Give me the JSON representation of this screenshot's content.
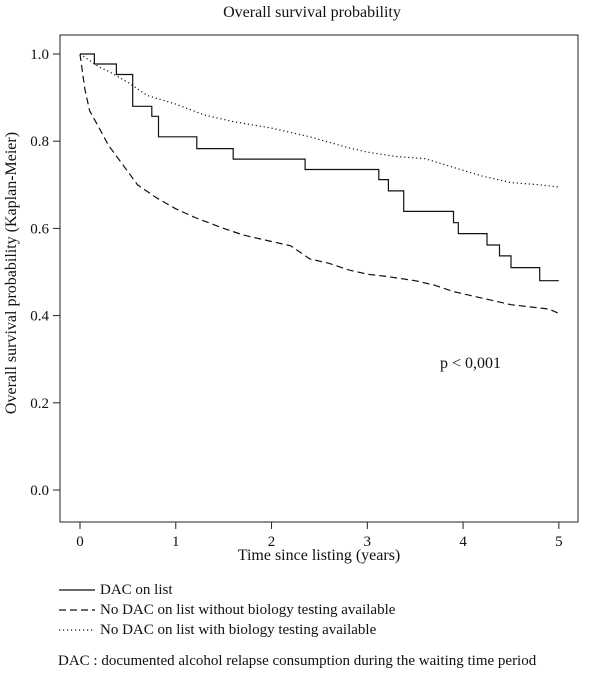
{
  "chart_data": {
    "type": "line",
    "title": "Overall survival probability",
    "xlabel": "Time since listing (years)",
    "ylabel": "Overall survival probability (Kaplan-Meier)",
    "xlim": [
      0,
      5.2
    ],
    "ylim": [
      0,
      1.05
    ],
    "xticks": [
      0,
      1,
      2,
      3,
      4,
      5
    ],
    "xtick_labels": [
      "0",
      "1",
      "2",
      "3",
      "4",
      "5"
    ],
    "yticks": [
      0.0,
      0.2,
      0.4,
      0.6,
      0.8,
      1.0
    ],
    "ytick_labels": [
      "0.0",
      "0.2",
      "0.4",
      "0.6",
      "0.8",
      "1.0"
    ],
    "grid": false,
    "legend_position": "below",
    "annotation": "p < 0,001",
    "series": [
      {
        "name": "DAC on list",
        "line_style": "solid",
        "step": true,
        "x": [
          0,
          0.15,
          0.38,
          0.55,
          0.75,
          0.82,
          1.22,
          1.6,
          2.35,
          3.12,
          3.22,
          3.38,
          3.9,
          3.95,
          4.25,
          4.38,
          4.5,
          4.8,
          5.0
        ],
        "y": [
          1.0,
          0.977,
          0.953,
          0.88,
          0.857,
          0.81,
          0.783,
          0.759,
          0.735,
          0.712,
          0.686,
          0.639,
          0.613,
          0.588,
          0.562,
          0.537,
          0.51,
          0.48,
          0.48
        ]
      },
      {
        "name": "No DAC on list without biology testing available",
        "line_style": "dashed",
        "step": false,
        "x": [
          0,
          0.05,
          0.1,
          0.2,
          0.3,
          0.4,
          0.5,
          0.6,
          0.8,
          1.0,
          1.2,
          1.5,
          1.7,
          2.0,
          2.2,
          2.4,
          2.6,
          2.8,
          3.0,
          3.2,
          3.5,
          3.7,
          3.9,
          4.1,
          4.3,
          4.5,
          4.7,
          4.9,
          5.0
        ],
        "y": [
          1.0,
          0.92,
          0.87,
          0.83,
          0.79,
          0.76,
          0.73,
          0.7,
          0.67,
          0.645,
          0.625,
          0.6,
          0.585,
          0.57,
          0.56,
          0.53,
          0.52,
          0.505,
          0.495,
          0.49,
          0.48,
          0.47,
          0.455,
          0.445,
          0.435,
          0.425,
          0.42,
          0.415,
          0.405
        ]
      },
      {
        "name": "No DAC on list with biology testing available",
        "line_style": "dotted",
        "step": false,
        "x": [
          0,
          0.1,
          0.2,
          0.3,
          0.5,
          0.7,
          1.0,
          1.3,
          1.6,
          2.0,
          2.4,
          2.8,
          3.0,
          3.3,
          3.6,
          3.9,
          4.2,
          4.5,
          4.8,
          5.0
        ],
        "y": [
          1.0,
          0.985,
          0.97,
          0.96,
          0.935,
          0.905,
          0.885,
          0.86,
          0.845,
          0.83,
          0.81,
          0.785,
          0.775,
          0.765,
          0.76,
          0.74,
          0.72,
          0.705,
          0.7,
          0.695
        ]
      }
    ]
  },
  "legend": {
    "items": [
      {
        "label": "DAC on list",
        "line_style": "solid"
      },
      {
        "label": "No DAC on list without biology testing available",
        "line_style": "dashed"
      },
      {
        "label": "No DAC on list with biology testing available",
        "line_style": "dotted"
      }
    ]
  },
  "footnote": "DAC : documented alcohol relapse consumption during the waiting time period"
}
